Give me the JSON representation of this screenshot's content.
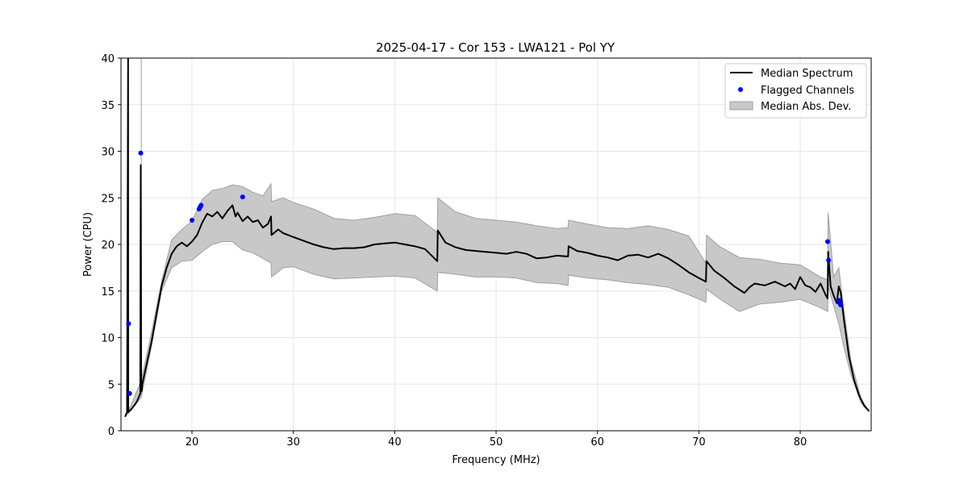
{
  "chart_data": {
    "type": "line",
    "title": "2025-04-17 - Cor 153 - LWA121 - Pol YY",
    "xlabel": "Frequency (MHz)",
    "ylabel": "Power (CPU)",
    "xlim": [
      13,
      87
    ],
    "ylim": [
      0,
      40
    ],
    "xticks": [
      20,
      30,
      40,
      50,
      60,
      70,
      80
    ],
    "yticks": [
      0,
      5,
      10,
      15,
      20,
      25,
      30,
      35,
      40
    ],
    "grid": true,
    "legend_position": "top-right",
    "legend": [
      "Median Spectrum",
      "Flagged Channels",
      "Median Abs. Dev."
    ],
    "colors": {
      "median": "#000000",
      "flagged": "#0000ff",
      "band_fill": "#c8c8c8",
      "band_edge": "#a0a0a0"
    },
    "series": [
      {
        "name": "Median Spectrum",
        "kind": "line",
        "x": [
          13.4,
          13.6,
          13.7,
          13.72,
          13.74,
          13.8,
          14.0,
          14.3,
          14.6,
          14.9,
          14.95,
          15.0,
          15.05,
          15.1,
          15.5,
          16.0,
          16.5,
          17.0,
          17.5,
          18.0,
          18.5,
          19.0,
          19.5,
          20.0,
          20.5,
          21.0,
          21.5,
          22.0,
          22.5,
          23.0,
          23.5,
          24.0,
          24.3,
          24.5,
          25.0,
          25.5,
          26.0,
          26.5,
          27.0,
          27.5,
          27.8,
          27.85,
          28.5,
          29.0,
          30.0,
          31.0,
          32.0,
          33.0,
          34.0,
          35.0,
          36.0,
          37.0,
          38.0,
          39.0,
          40.0,
          41.0,
          42.0,
          43.0,
          44.2,
          44.25,
          45.0,
          46.0,
          47.0,
          48.0,
          49.0,
          50.0,
          51.0,
          52.0,
          53.0,
          54.0,
          55.0,
          56.0,
          57.1,
          57.15,
          58.0,
          59.0,
          60.0,
          61.0,
          62.0,
          63.0,
          64.0,
          65.0,
          66.0,
          67.0,
          68.0,
          69.0,
          70.0,
          70.7,
          70.75,
          71.5,
          72.5,
          73.5,
          74.5,
          75.0,
          75.5,
          76.5,
          77.5,
          78.5,
          79.0,
          79.5,
          80.0,
          80.5,
          81.0,
          81.5,
          82.0,
          82.5,
          82.7,
          82.75,
          83.0,
          83.3,
          83.6,
          83.8,
          84.0,
          84.3,
          84.8,
          85.3,
          85.8,
          86.3,
          86.8
        ],
        "y": [
          1.5,
          2.0,
          40.0,
          2.0,
          2.0,
          2.1,
          2.3,
          2.7,
          3.2,
          4.0,
          28.5,
          4.2,
          4.3,
          5.0,
          7.0,
          9.5,
          12.5,
          15.5,
          17.5,
          19.0,
          19.8,
          20.2,
          19.8,
          20.3,
          21.0,
          22.3,
          23.3,
          23.0,
          23.5,
          22.8,
          23.6,
          24.2,
          23.0,
          23.4,
          22.5,
          23.0,
          22.4,
          22.6,
          21.8,
          22.2,
          23.0,
          21.0,
          21.6,
          21.2,
          20.8,
          20.4,
          20.0,
          19.7,
          19.5,
          19.6,
          19.6,
          19.7,
          20.0,
          20.1,
          20.2,
          20.0,
          19.8,
          19.5,
          18.2,
          21.5,
          20.2,
          19.7,
          19.4,
          19.3,
          19.2,
          19.1,
          19.0,
          19.2,
          19.0,
          18.5,
          18.6,
          18.8,
          18.7,
          19.8,
          19.3,
          19.1,
          18.8,
          18.6,
          18.3,
          18.8,
          18.9,
          18.6,
          19.0,
          18.5,
          17.8,
          17.0,
          16.4,
          16.0,
          18.2,
          17.2,
          16.4,
          15.5,
          14.8,
          15.4,
          15.8,
          15.6,
          16.0,
          15.5,
          15.8,
          15.2,
          16.5,
          15.6,
          15.4,
          14.9,
          15.8,
          14.6,
          14.2,
          19.2,
          15.5,
          14.5,
          13.7,
          15.5,
          14.8,
          12.0,
          8.0,
          5.5,
          3.8,
          2.7,
          2.1
        ],
        "spikes": [
          {
            "x": 13.7,
            "y": 40.0
          },
          {
            "x": 14.95,
            "y": 28.5
          },
          {
            "x": 82.75,
            "y": 19.2
          }
        ]
      },
      {
        "name": "Flagged Channels",
        "kind": "scatter",
        "x": [
          13.75,
          13.85,
          14.95,
          20.0,
          20.7,
          20.8,
          20.9,
          25.0,
          82.7,
          82.8,
          83.8,
          83.9,
          84.0
        ],
        "y": [
          11.5,
          4.0,
          29.8,
          22.6,
          23.8,
          24.0,
          24.2,
          25.1,
          20.3,
          18.3,
          14.0,
          13.7,
          13.5
        ]
      },
      {
        "name": "Median Abs. Dev.",
        "kind": "band",
        "x": [
          13.4,
          14.0,
          15.0,
          16.0,
          17.0,
          18.0,
          19.0,
          20.0,
          21.0,
          22.0,
          23.0,
          24.0,
          25.0,
          26.0,
          27.0,
          27.8,
          27.85,
          29.0,
          30.0,
          32.0,
          34.0,
          36.0,
          38.0,
          40.0,
          42.0,
          44.2,
          44.25,
          46.0,
          48.0,
          50.0,
          52.0,
          54.0,
          56.0,
          57.1,
          57.15,
          59.0,
          61.0,
          63.0,
          65.0,
          67.0,
          69.0,
          70.7,
          70.75,
          72.0,
          74.0,
          76.0,
          78.0,
          80.0,
          82.0,
          82.7,
          82.75,
          83.3,
          83.8,
          84.3,
          85.0,
          86.0,
          86.8
        ],
        "lower": [
          1.5,
          2.2,
          3.6,
          9.0,
          15.0,
          17.5,
          18.2,
          18.3,
          19.2,
          20.0,
          20.3,
          20.3,
          19.4,
          19.1,
          18.5,
          18.0,
          16.5,
          17.5,
          17.6,
          16.8,
          16.3,
          16.4,
          16.5,
          16.6,
          16.4,
          15.0,
          17.0,
          16.8,
          16.5,
          16.5,
          16.4,
          15.9,
          15.8,
          15.6,
          16.7,
          16.4,
          16.2,
          15.9,
          15.7,
          15.4,
          14.6,
          13.8,
          15.2,
          14.2,
          12.8,
          13.6,
          13.8,
          14.1,
          13.2,
          12.8,
          15.5,
          13.4,
          11.5,
          9.0,
          6.0,
          3.0,
          2.0
        ],
        "upper": [
          1.5,
          2.8,
          5.4,
          10.5,
          16.0,
          20.5,
          21.6,
          22.5,
          24.8,
          25.8,
          26.0,
          26.4,
          26.2,
          25.6,
          25.2,
          26.5,
          24.6,
          25.0,
          24.5,
          23.8,
          22.8,
          22.6,
          22.9,
          23.3,
          23.1,
          21.3,
          25.0,
          23.5,
          22.8,
          22.6,
          22.4,
          22.0,
          21.7,
          21.8,
          22.6,
          22.2,
          21.8,
          21.7,
          22.0,
          21.6,
          20.9,
          18.0,
          21.0,
          19.8,
          18.6,
          18.4,
          18.0,
          17.8,
          16.5,
          16.2,
          23.4,
          16.5,
          17.5,
          13.0,
          7.5,
          3.5,
          2.0
        ]
      }
    ]
  }
}
